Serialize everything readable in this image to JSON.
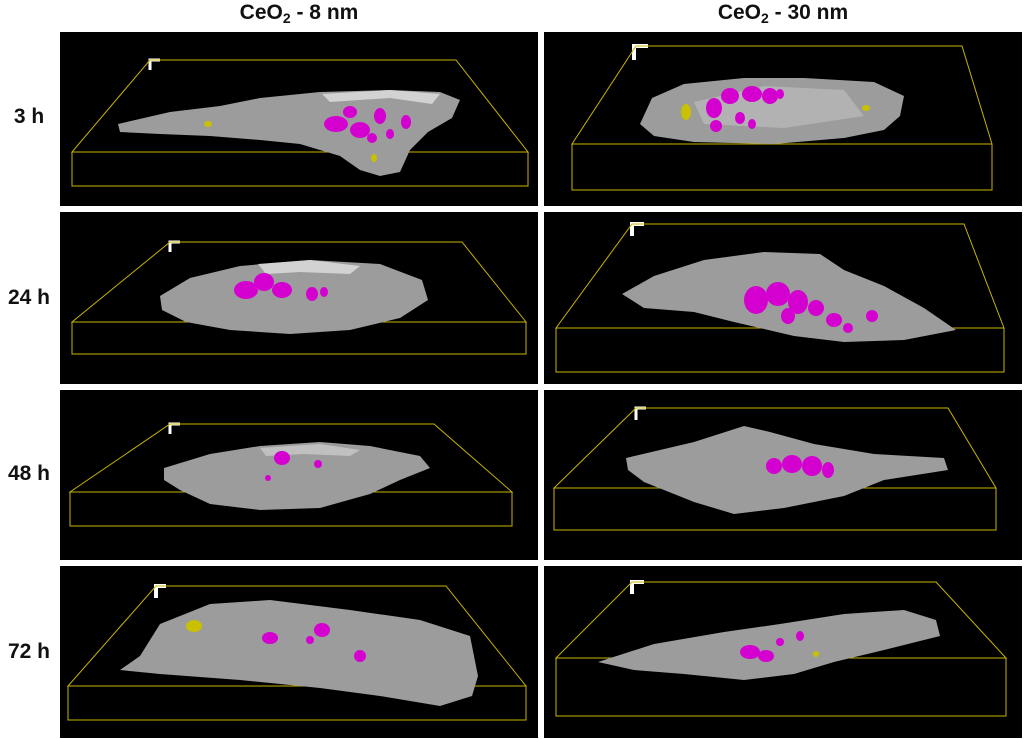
{
  "figure": {
    "columns": [
      {
        "prefix": "CeO",
        "subscript": "2",
        "suffix": " - 8 nm"
      },
      {
        "prefix": "CeO",
        "subscript": "2",
        "suffix": " - 30 nm"
      }
    ],
    "rows": [
      {
        "label": "3 h"
      },
      {
        "label": "24 h"
      },
      {
        "label": "48 h"
      },
      {
        "label": "72 h"
      }
    ]
  },
  "colors": {
    "panel_background": "#000000",
    "bounding_box": "#c8b400",
    "cell_body": "#9c9c9c",
    "cell_highlight": "#d2d2d2",
    "nanoparticle_aggregate": "#d400d0",
    "yellow_particle": "#c8c000",
    "axis_marker": "#ffffff"
  }
}
